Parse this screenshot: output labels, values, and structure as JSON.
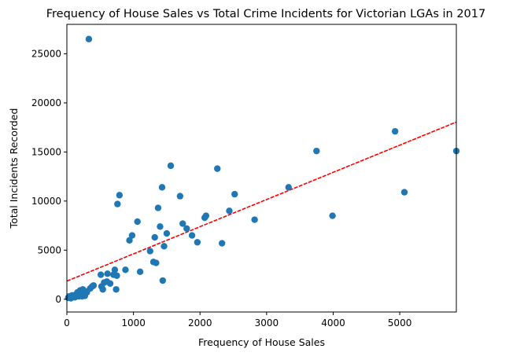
{
  "chart_data": {
    "type": "scatter",
    "title": "Frequency of House Sales vs Total Crime Incidents for Victorian LGAs in 2017",
    "xlabel": "Frequency of House Sales",
    "ylabel": "Total Incidents Recorded",
    "xlim": [
      0,
      5850
    ],
    "ylim": [
      -1300,
      28000
    ],
    "xticks": [
      0,
      1000,
      2000,
      3000,
      4000,
      5000
    ],
    "yticks": [
      0,
      5000,
      10000,
      15000,
      20000,
      25000
    ],
    "xtick_labels": [
      "0",
      "1000",
      "2000",
      "3000",
      "4000",
      "5000"
    ],
    "ytick_labels": [
      "0",
      "5000",
      "10000",
      "15000",
      "20000",
      "25000"
    ],
    "grid": false,
    "colors": {
      "points": "#1f77b4",
      "fit_line": "#ff0000"
    },
    "fit_line": {
      "style": "dashed",
      "x": [
        0,
        5850
      ],
      "y": [
        1850,
        18050
      ]
    },
    "points": [
      [
        330,
        26500
      ],
      [
        20,
        150
      ],
      [
        40,
        300
      ],
      [
        60,
        100
      ],
      [
        80,
        400
      ],
      [
        100,
        250
      ],
      [
        120,
        200
      ],
      [
        140,
        500
      ],
      [
        160,
        700
      ],
      [
        180,
        300
      ],
      [
        200,
        900
      ],
      [
        220,
        600
      ],
      [
        240,
        1000
      ],
      [
        260,
        400
      ],
      [
        280,
        800
      ],
      [
        300,
        700
      ],
      [
        350,
        1100
      ],
      [
        380,
        1300
      ],
      [
        400,
        1400
      ],
      [
        230,
        300
      ],
      [
        270,
        350
      ],
      [
        510,
        2500
      ],
      [
        520,
        1300
      ],
      [
        540,
        1000
      ],
      [
        560,
        1700
      ],
      [
        600,
        1800
      ],
      [
        610,
        2600
      ],
      [
        650,
        1600
      ],
      [
        700,
        2500
      ],
      [
        720,
        3000
      ],
      [
        740,
        1000
      ],
      [
        750,
        2400
      ],
      [
        760,
        9700
      ],
      [
        790,
        10600
      ],
      [
        880,
        3000
      ],
      [
        940,
        6000
      ],
      [
        980,
        6500
      ],
      [
        1060,
        7900
      ],
      [
        1100,
        2800
      ],
      [
        1250,
        4900
      ],
      [
        1300,
        3800
      ],
      [
        1320,
        6300
      ],
      [
        1340,
        3700
      ],
      [
        1370,
        9300
      ],
      [
        1400,
        7400
      ],
      [
        1430,
        11400
      ],
      [
        1440,
        1900
      ],
      [
        1460,
        5400
      ],
      [
        1500,
        6700
      ],
      [
        1560,
        13600
      ],
      [
        1700,
        10500
      ],
      [
        1740,
        7700
      ],
      [
        1800,
        7200
      ],
      [
        1880,
        6500
      ],
      [
        1960,
        5800
      ],
      [
        2070,
        8300
      ],
      [
        2090,
        8500
      ],
      [
        2260,
        13300
      ],
      [
        2330,
        5700
      ],
      [
        2440,
        9000
      ],
      [
        2520,
        10700
      ],
      [
        2820,
        8100
      ],
      [
        3330,
        11400
      ],
      [
        3750,
        15100
      ],
      [
        3990,
        8500
      ],
      [
        4930,
        17100
      ],
      [
        5070,
        10900
      ],
      [
        5850,
        15100
      ]
    ]
  }
}
